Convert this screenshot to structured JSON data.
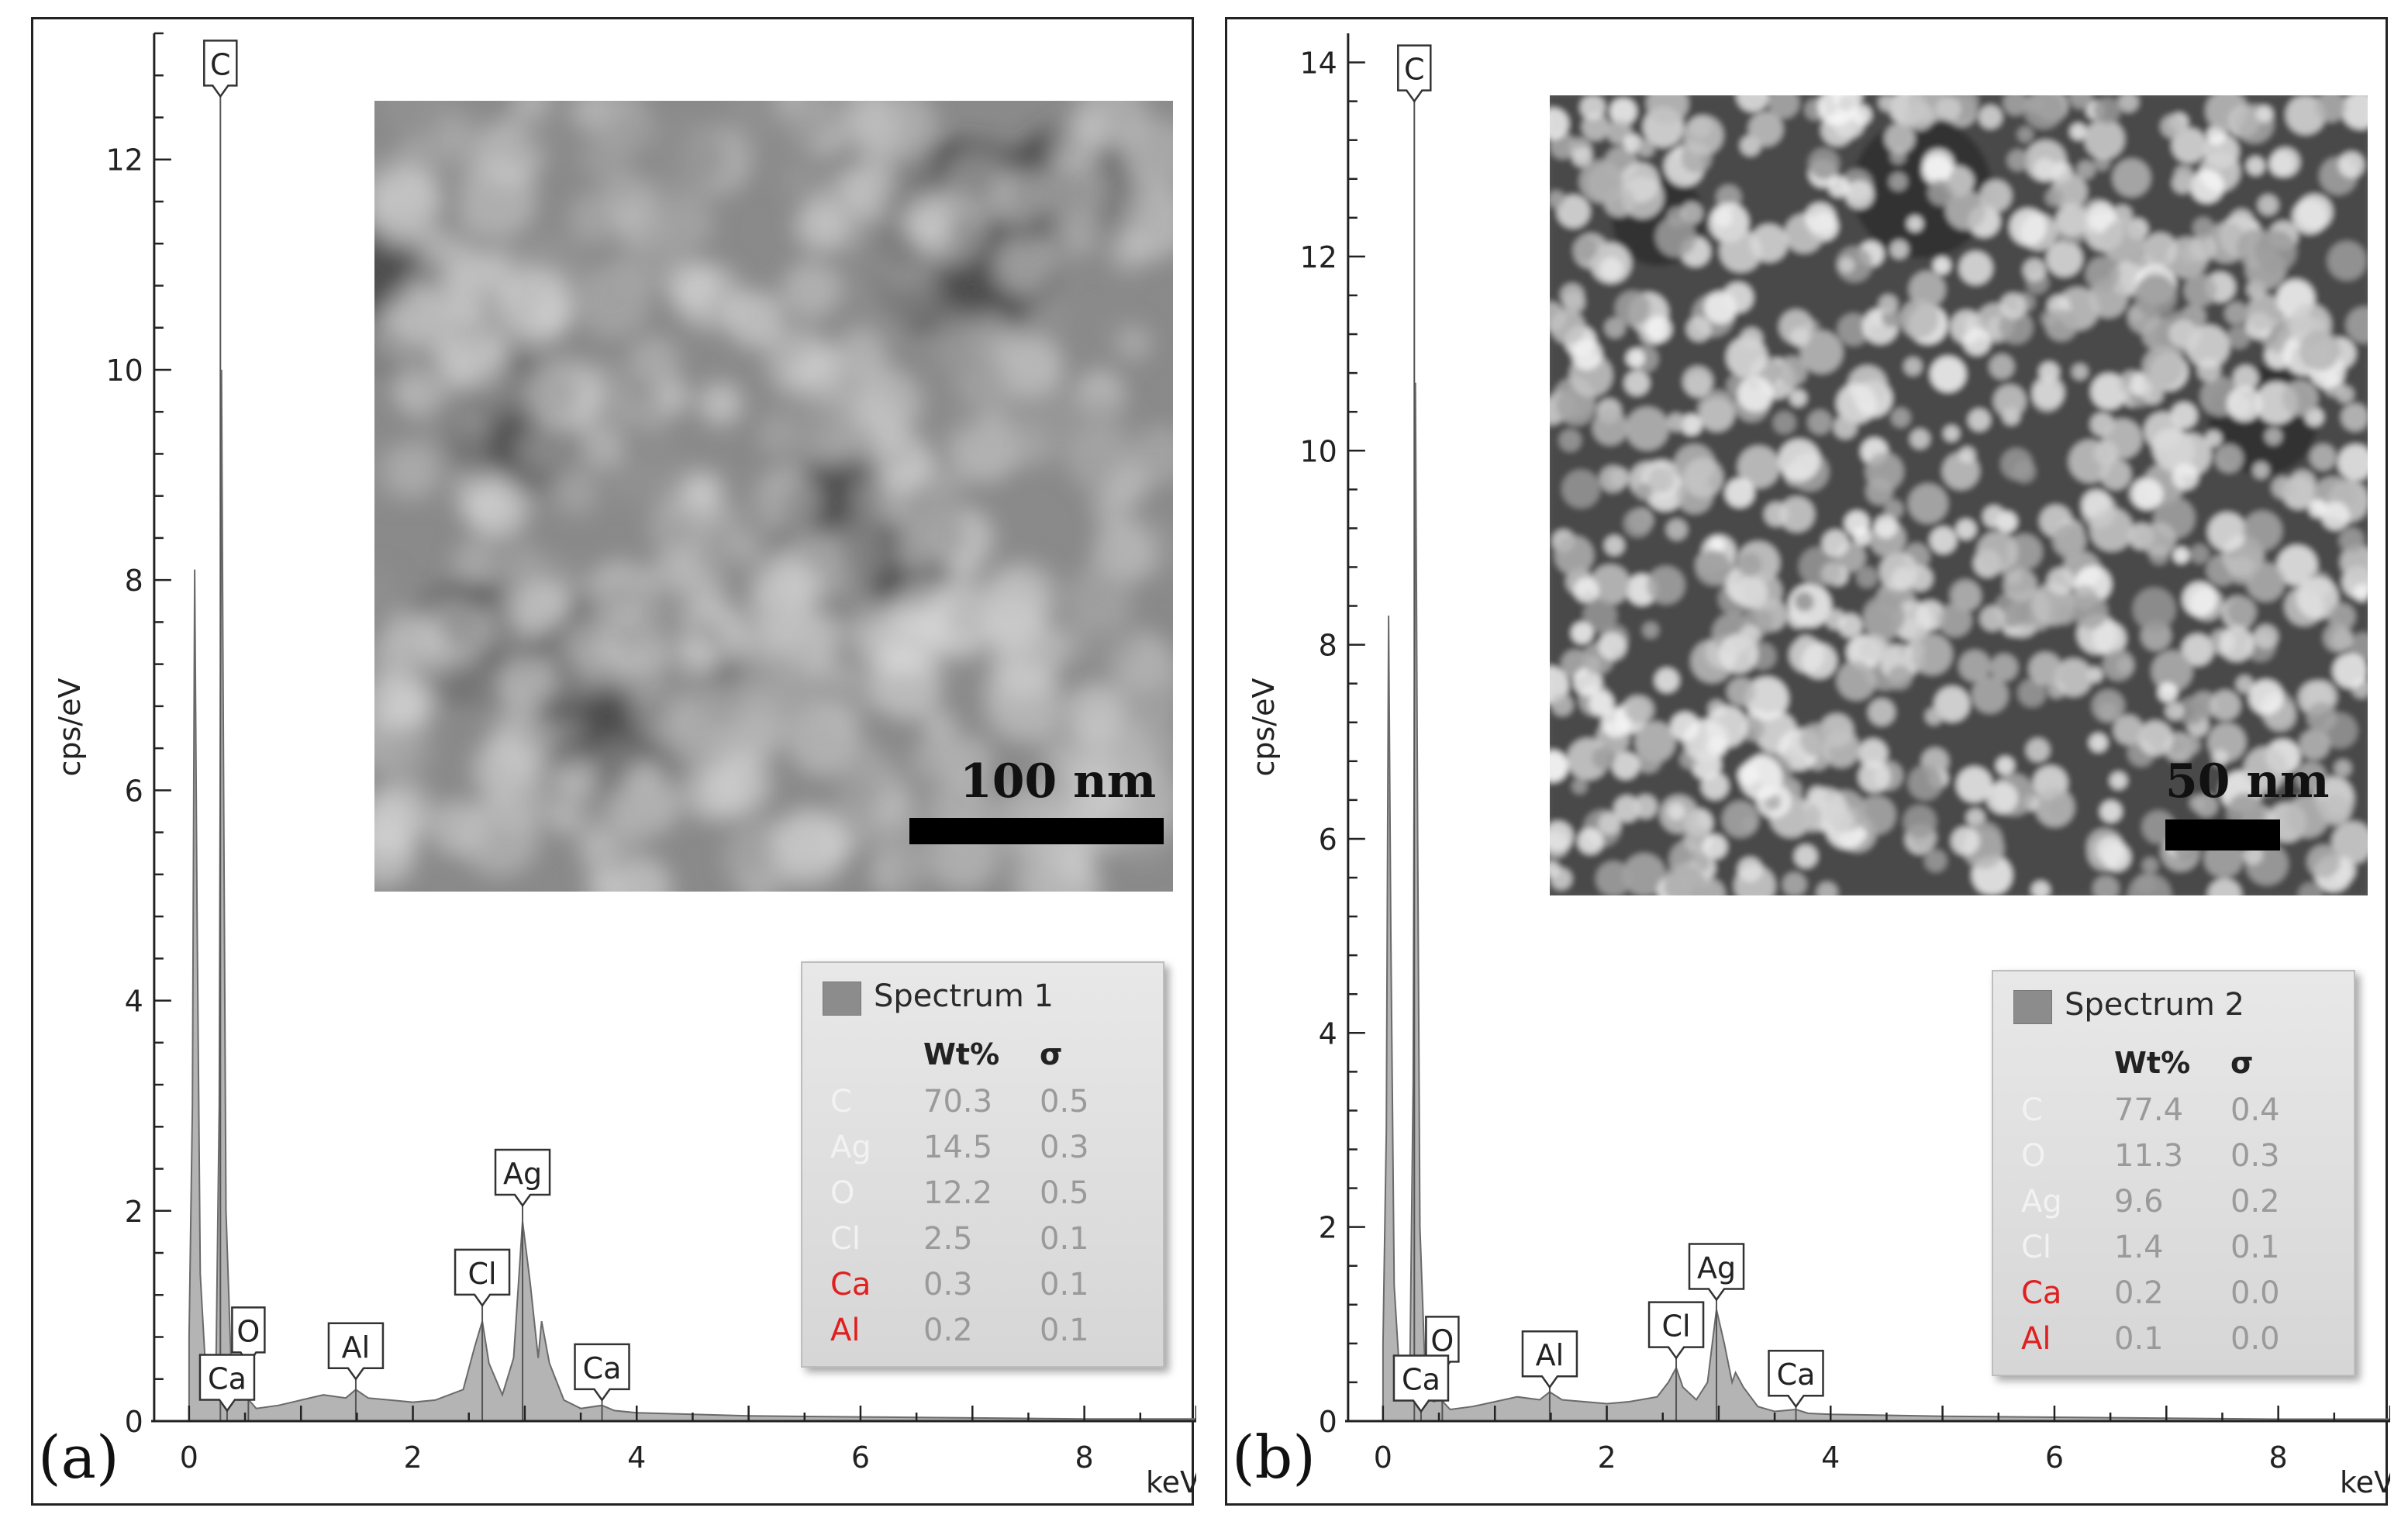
{
  "chart_data": [
    {
      "panel": "(a)",
      "type": "area",
      "xlabel": "keV",
      "ylabel": "cps/eV",
      "xlim": [
        -0.2,
        9.0
      ],
      "ylim": [
        0,
        13.2
      ],
      "xticks": [
        0,
        2,
        4,
        6,
        8
      ],
      "yticks": [
        0,
        2,
        4,
        6,
        8,
        10,
        12
      ],
      "spectrum": [
        [
          0.0,
          0.8
        ],
        [
          0.03,
          3.0
        ],
        [
          0.05,
          8.1
        ],
        [
          0.07,
          5.0
        ],
        [
          0.1,
          1.4
        ],
        [
          0.15,
          0.45
        ],
        [
          0.2,
          0.3
        ],
        [
          0.24,
          0.45
        ],
        [
          0.27,
          3.0
        ],
        [
          0.29,
          10.0
        ],
        [
          0.31,
          5.8
        ],
        [
          0.33,
          2.0
        ],
        [
          0.38,
          0.4
        ],
        [
          0.45,
          0.2
        ],
        [
          0.52,
          0.22
        ],
        [
          0.6,
          0.12
        ],
        [
          0.8,
          0.15
        ],
        [
          1.0,
          0.2
        ],
        [
          1.2,
          0.25
        ],
        [
          1.4,
          0.22
        ],
        [
          1.49,
          0.3
        ],
        [
          1.6,
          0.22
        ],
        [
          1.8,
          0.2
        ],
        [
          2.0,
          0.18
        ],
        [
          2.2,
          0.2
        ],
        [
          2.45,
          0.3
        ],
        [
          2.55,
          0.7
        ],
        [
          2.62,
          0.95
        ],
        [
          2.68,
          0.55
        ],
        [
          2.8,
          0.25
        ],
        [
          2.9,
          0.6
        ],
        [
          2.98,
          1.9
        ],
        [
          3.05,
          1.3
        ],
        [
          3.12,
          0.6
        ],
        [
          3.15,
          0.95
        ],
        [
          3.22,
          0.55
        ],
        [
          3.35,
          0.2
        ],
        [
          3.5,
          0.12
        ],
        [
          3.69,
          0.15
        ],
        [
          3.8,
          0.1
        ],
        [
          4.0,
          0.08
        ],
        [
          5.0,
          0.05
        ],
        [
          6.0,
          0.04
        ],
        [
          7.0,
          0.03
        ],
        [
          8.0,
          0.02
        ],
        [
          9.0,
          0.02
        ]
      ],
      "peak_labels": [
        {
          "label": "C",
          "x": 0.28,
          "y": 12.6
        },
        {
          "label": "O",
          "x": 0.53,
          "y": 0.55
        },
        {
          "label": "Ca",
          "x": 0.34,
          "y": 0.1
        },
        {
          "label": "Al",
          "x": 1.49,
          "y": 0.4
        },
        {
          "label": "Cl",
          "x": 2.62,
          "y": 1.1
        },
        {
          "label": "Ag",
          "x": 2.98,
          "y": 2.05
        },
        {
          "label": "Ca",
          "x": 3.69,
          "y": 0.2
        }
      ],
      "inset": {
        "scale_label": "100 nm",
        "particle_style": "blurry"
      },
      "legend": {
        "title": "Spectrum 1",
        "columns": [
          "Wt%",
          "σ"
        ],
        "rows": [
          {
            "element": "C",
            "wt": "70.3",
            "sigma": "0.5",
            "color": "#f2f2f2"
          },
          {
            "element": "Ag",
            "wt": "14.5",
            "sigma": "0.3",
            "color": "#f2f2f2"
          },
          {
            "element": "O",
            "wt": "12.2",
            "sigma": "0.5",
            "color": "#f2f2f2"
          },
          {
            "element": "Cl",
            "wt": "2.5",
            "sigma": "0.1",
            "color": "#f2f2f2"
          },
          {
            "element": "Ca",
            "wt": "0.3",
            "sigma": "0.1",
            "color": "#e02020"
          },
          {
            "element": "Al",
            "wt": "0.2",
            "sigma": "0.1",
            "color": "#e02020"
          }
        ]
      }
    },
    {
      "panel": "(b)",
      "type": "area",
      "xlabel": "keV",
      "ylabel": "cps/eV",
      "xlim": [
        -0.2,
        9.0
      ],
      "ylim": [
        0,
        14.3
      ],
      "xticks": [
        0,
        2,
        4,
        6,
        8
      ],
      "yticks": [
        0,
        2,
        4,
        6,
        8,
        10,
        12,
        14
      ],
      "spectrum": [
        [
          0.0,
          0.8
        ],
        [
          0.03,
          3.0
        ],
        [
          0.05,
          8.3
        ],
        [
          0.07,
          5.0
        ],
        [
          0.1,
          1.4
        ],
        [
          0.15,
          0.45
        ],
        [
          0.2,
          0.3
        ],
        [
          0.24,
          0.45
        ],
        [
          0.27,
          3.5
        ],
        [
          0.29,
          10.7
        ],
        [
          0.31,
          6.0
        ],
        [
          0.33,
          2.0
        ],
        [
          0.38,
          0.4
        ],
        [
          0.45,
          0.2
        ],
        [
          0.52,
          0.22
        ],
        [
          0.6,
          0.12
        ],
        [
          0.8,
          0.15
        ],
        [
          1.0,
          0.2
        ],
        [
          1.2,
          0.25
        ],
        [
          1.4,
          0.22
        ],
        [
          1.49,
          0.3
        ],
        [
          1.6,
          0.22
        ],
        [
          1.8,
          0.2
        ],
        [
          2.0,
          0.18
        ],
        [
          2.2,
          0.2
        ],
        [
          2.45,
          0.25
        ],
        [
          2.55,
          0.4
        ],
        [
          2.62,
          0.55
        ],
        [
          2.68,
          0.35
        ],
        [
          2.8,
          0.22
        ],
        [
          2.9,
          0.4
        ],
        [
          2.98,
          1.15
        ],
        [
          3.05,
          0.8
        ],
        [
          3.12,
          0.4
        ],
        [
          3.15,
          0.5
        ],
        [
          3.22,
          0.35
        ],
        [
          3.35,
          0.15
        ],
        [
          3.5,
          0.1
        ],
        [
          3.69,
          0.12
        ],
        [
          3.8,
          0.08
        ],
        [
          4.0,
          0.07
        ],
        [
          5.0,
          0.05
        ],
        [
          6.0,
          0.04
        ],
        [
          7.0,
          0.03
        ],
        [
          8.0,
          0.02
        ],
        [
          9.0,
          0.02
        ]
      ],
      "peak_labels": [
        {
          "label": "C",
          "x": 0.28,
          "y": 13.6
        },
        {
          "label": "O",
          "x": 0.53,
          "y": 0.5
        },
        {
          "label": "Ca",
          "x": 0.34,
          "y": 0.1
        },
        {
          "label": "Al",
          "x": 1.49,
          "y": 0.35
        },
        {
          "label": "Cl",
          "x": 2.62,
          "y": 0.65
        },
        {
          "label": "Ag",
          "x": 2.98,
          "y": 1.25
        },
        {
          "label": "Ca",
          "x": 3.69,
          "y": 0.15
        }
      ],
      "inset": {
        "scale_label": "50 nm",
        "particle_style": "dense-spheres"
      },
      "legend": {
        "title": "Spectrum 2",
        "columns": [
          "Wt%",
          "σ"
        ],
        "rows": [
          {
            "element": "C",
            "wt": "77.4",
            "sigma": "0.4",
            "color": "#f2f2f2"
          },
          {
            "element": "O",
            "wt": "11.3",
            "sigma": "0.3",
            "color": "#f2f2f2"
          },
          {
            "element": "Ag",
            "wt": "9.6",
            "sigma": "0.2",
            "color": "#f2f2f2"
          },
          {
            "element": "Cl",
            "wt": "1.4",
            "sigma": "0.1",
            "color": "#f2f2f2"
          },
          {
            "element": "Ca",
            "wt": "0.2",
            "sigma": "0.0",
            "color": "#e02020"
          },
          {
            "element": "Al",
            "wt": "0.1",
            "sigma": "0.0",
            "color": "#e02020"
          }
        ]
      }
    }
  ]
}
